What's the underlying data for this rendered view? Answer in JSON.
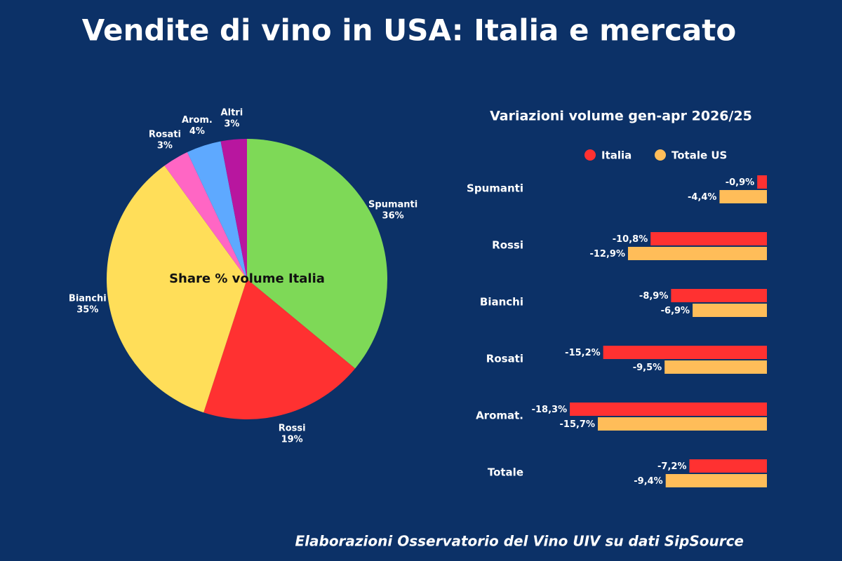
{
  "title": "Vendite di vino in USA: Italia e mercato",
  "source": "Elaborazioni Osservatorio del Vino UIV su dati SipSource",
  "chart_data": [
    {
      "type": "pie",
      "title": "Share % volume Italia",
      "categories": [
        "Spumanti",
        "Rossi",
        "Bianchi",
        "Rosati",
        "Arom.",
        "Altri"
      ],
      "values": [
        36,
        19,
        35,
        3,
        4,
        3
      ],
      "value_labels": [
        "36%",
        "19%",
        "35%",
        "3%",
        "4%",
        "3%"
      ],
      "colors": [
        "#7ed957",
        "#ff3131",
        "#ffde59",
        "#ff66c4",
        "#5ea9ff",
        "#b8169f"
      ]
    },
    {
      "type": "hbar",
      "title": "Variazioni volume gen-apr 2026/25",
      "categories": [
        "Spumanti",
        "Rossi",
        "Bianchi",
        "Rosati",
        "Aromat.",
        "Totale"
      ],
      "legend": "top",
      "xlim": [
        -20,
        0
      ],
      "series": [
        {
          "name": "Italia",
          "color": "#ff3131",
          "values": [
            -0.9,
            -10.8,
            -8.9,
            -15.2,
            -18.3,
            -7.2
          ],
          "value_labels": [
            "-0,9%",
            "-10,8%",
            "-8,9%",
            "-15,2%",
            "-18,3%",
            "-7,2%"
          ]
        },
        {
          "name": "Totale US",
          "color": "#ffbd59",
          "values": [
            -4.4,
            -12.9,
            -6.9,
            -9.5,
            -15.7,
            -9.4
          ],
          "value_labels": [
            "-4,4%",
            "-12,9%",
            "-6,9%",
            "-9,5%",
            "-15,7%",
            "-9,4%"
          ]
        }
      ]
    }
  ]
}
